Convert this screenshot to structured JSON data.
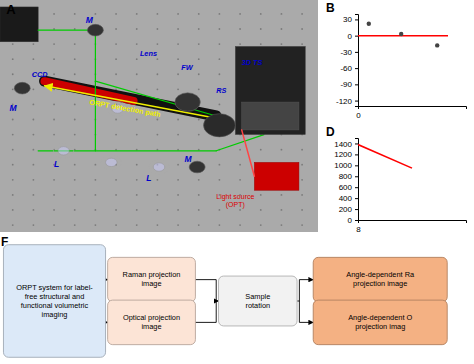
{
  "chart_data": [
    {
      "type": "diagram",
      "title": "A",
      "annotations": [
        {
          "text": "Lens",
          "color": "#0000cc"
        },
        {
          "text": "FW",
          "color": "#0000cc"
        },
        {
          "text": "RS",
          "color": "#0000cc"
        },
        {
          "text": "3D TS",
          "color": "#0000cc"
        },
        {
          "text": "CCD",
          "color": "#0000cc"
        },
        {
          "text": "L",
          "color": "#0000cc"
        },
        {
          "text": "L",
          "color": "#0000cc"
        },
        {
          "text": "M",
          "color": "#0000cc"
        },
        {
          "text": "M",
          "color": "#0000cc"
        },
        {
          "text": "M",
          "color": "#0000cc"
        },
        {
          "text": "ORPT detection path",
          "color": "#eeee00"
        },
        {
          "text": "Light source\n(OPT)",
          "color": "#dd0000"
        }
      ]
    },
    {
      "type": "line",
      "title": "B",
      "series": [
        {
          "type": "line",
          "color": "#ff0000",
          "x": [
            0,
            2.5
          ],
          "values": [
            0,
            0
          ]
        },
        {
          "type": "scatter",
          "color": "#444444",
          "x": [
            0.3,
            1.2,
            2.2
          ],
          "values": [
            22,
            3,
            -18
          ]
        }
      ],
      "xlim": [
        0,
        3
      ],
      "xticks": [
        0
      ],
      "ylim": [
        -130,
        40
      ],
      "yticks": [
        30,
        0,
        -30,
        -60,
        -90,
        -120
      ]
    },
    {
      "type": "line",
      "title": "D",
      "color": "#ff0000",
      "x": [
        8,
        11.0
      ],
      "values": [
        1380,
        950
      ],
      "xlim": [
        8,
        14
      ],
      "xticks": [
        8
      ],
      "ylim": [
        0,
        1500
      ],
      "yticks": [
        0,
        200,
        400,
        600,
        800,
        1000,
        1200,
        1400
      ]
    },
    {
      "type": "flowchart",
      "title": "F",
      "nodes": [
        {
          "text": "ORPT system for label-\nfree structural and\nfunctional volumetric\nimaging",
          "color": "#dce9f8"
        },
        {
          "text": "Raman projection\nimage",
          "color": "#fce4d6"
        },
        {
          "text": "Optical projection\nimage",
          "color": "#fce4d6"
        },
        {
          "text": "Sample\nrotation",
          "color": "#f2f2f2"
        },
        {
          "text": "Angle-dependent Ra\nprojection image",
          "color": "#f4b183"
        },
        {
          "text": "Angle-dependent O\nprojection imag",
          "color": "#f4b183"
        }
      ]
    }
  ]
}
